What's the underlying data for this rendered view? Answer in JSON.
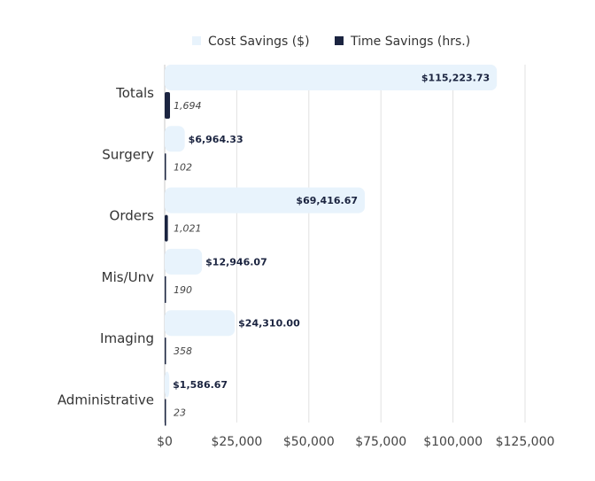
{
  "chart_data": {
    "type": "bar",
    "orientation": "horizontal",
    "categories": [
      "Totals",
      "Surgery",
      "Orders",
      "Mis/Unv",
      "Imaging",
      "Administrative"
    ],
    "series": [
      {
        "name": "Cost Savings ($)",
        "color": "#e8f3fc",
        "values": [
          115223.73,
          6964.33,
          69416.67,
          12946.07,
          24310.0,
          1586.67
        ],
        "labels": [
          "$115,223.73",
          "$6,964.33",
          "$69,416.67",
          "$12,946.07",
          "$24,310.00",
          "$1,586.67"
        ]
      },
      {
        "name": "Time Savings (hrs.)",
        "color": "#1b2440",
        "values": [
          1694,
          102,
          1021,
          190,
          358,
          23
        ],
        "labels": [
          "1,694",
          "102",
          "1,021",
          "190",
          "358",
          "23"
        ]
      }
    ],
    "xlim": [
      0,
      125000
    ],
    "x_ticks": [
      0,
      25000,
      50000,
      75000,
      100000,
      125000
    ],
    "x_tick_labels": [
      "$0",
      "$25,000",
      "$50,000",
      "$75,000",
      "$100,000",
      "$125,000"
    ],
    "grid": "vertical",
    "legend": "top-center"
  }
}
